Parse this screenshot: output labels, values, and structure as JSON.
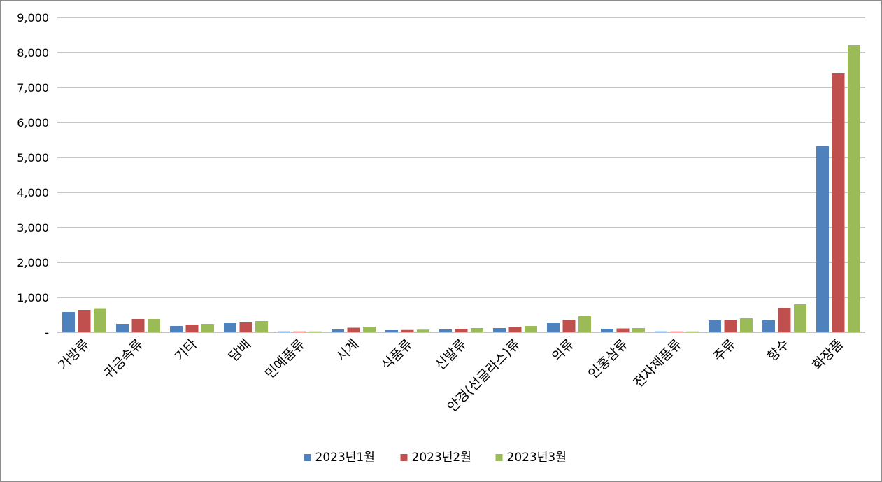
{
  "chart_data": {
    "type": "bar",
    "title": "",
    "xlabel": "",
    "ylabel": "",
    "ylim": [
      0,
      9000
    ],
    "y_ticks": [
      "-",
      "1,000",
      "2,000",
      "3,000",
      "4,000",
      "5,000",
      "6,000",
      "7,000",
      "8,000",
      "9,000"
    ],
    "grid": true,
    "legend_position": "bottom",
    "categories": [
      "가방류",
      "귀금속류",
      "기타",
      "담배",
      "민예품류",
      "시계",
      "식품류",
      "신발류",
      "안경(선글라스)류",
      "의류",
      "인홍삼류",
      "전자제품류",
      "주류",
      "향수",
      "화장품"
    ],
    "series": [
      {
        "name": "2023년1월",
        "color": "#4f81bd",
        "values": [
          580,
          240,
          180,
          260,
          25,
          80,
          60,
          80,
          120,
          260,
          100,
          25,
          340,
          340,
          5330
        ]
      },
      {
        "name": "2023년2월",
        "color": "#c0504d",
        "values": [
          640,
          380,
          220,
          280,
          25,
          130,
          65,
          100,
          160,
          360,
          110,
          25,
          360,
          700,
          7400
        ]
      },
      {
        "name": "2023년3월",
        "color": "#9bbb59",
        "values": [
          690,
          380,
          240,
          320,
          25,
          160,
          75,
          120,
          180,
          460,
          120,
          25,
          400,
          800,
          8200
        ]
      }
    ]
  }
}
